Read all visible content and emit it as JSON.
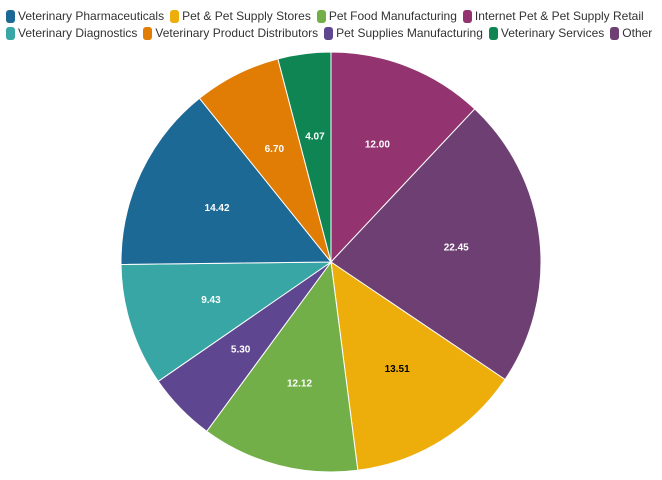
{
  "chart_data": {
    "type": "pie",
    "title": "",
    "legend_position": "top",
    "start_angle_deg": 0,
    "direction": "clockwise",
    "slices": [
      {
        "label": "Internet Pet & Pet Supply Retail",
        "value": 12.0,
        "color": "#93336f",
        "label_color": "#ffffff"
      },
      {
        "label": "Other",
        "value": 22.45,
        "color": "#6e3f73",
        "label_color": "#ffffff"
      },
      {
        "label": "Pet & Pet Supply Stores",
        "value": 13.51,
        "color": "#edad0b",
        "label_color": "#000000"
      },
      {
        "label": "Pet Food Manufacturing",
        "value": 12.12,
        "color": "#73af48",
        "label_color": "#ffffff"
      },
      {
        "label": "Pet Supplies Manufacturing",
        "value": 5.3,
        "color": "#5f4690",
        "label_color": "#ffffff"
      },
      {
        "label": "Veterinary Diagnostics",
        "value": 9.43,
        "color": "#38a6a5",
        "label_color": "#ffffff"
      },
      {
        "label": "Veterinary Pharmaceuticals",
        "value": 14.42,
        "color": "#1d6996",
        "label_color": "#ffffff"
      },
      {
        "label": "Veterinary Product Distributors",
        "value": 6.7,
        "color": "#e17c05",
        "label_color": "#ffffff"
      },
      {
        "label": "Veterinary Services",
        "value": 4.07,
        "color": "#0f8554",
        "label_color": "#ffffff"
      }
    ],
    "legend_order": [
      [
        "Veterinary Pharmaceuticals",
        "Pet & Pet Supply Stores",
        "Pet Food Manufacturing",
        "Internet Pet & Pet Supply Retail"
      ],
      [
        "Veterinary Diagnostics",
        "Veterinary Product Distributors",
        "Pet Supplies Manufacturing",
        "Veterinary Services",
        "Other"
      ]
    ]
  }
}
